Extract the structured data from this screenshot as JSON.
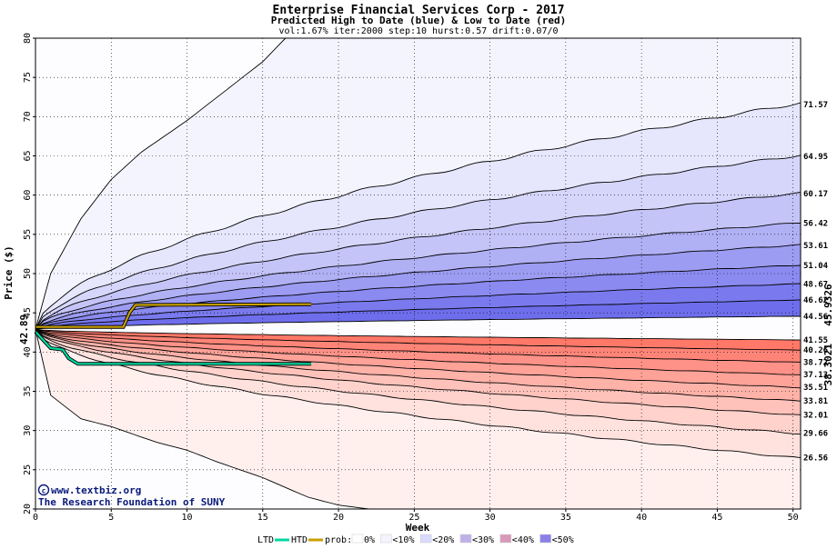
{
  "chart_data": {
    "type": "area",
    "title": "Enterprise Financial Services Corp - 2017",
    "subtitle": "Predicted High to Date (blue) &  Low to Date (red)",
    "params": "vol:1.67% iter:2000 step:10 hurst:0.57 drift:0.07/0",
    "xlabel": "Week",
    "ylabel": "Price ($)",
    "xlim": [
      0,
      50.5
    ],
    "ylim": [
      20,
      80
    ],
    "x_ticks": [
      0,
      5,
      10,
      15,
      20,
      25,
      30,
      35,
      40,
      45,
      50
    ],
    "y_ticks": [
      20,
      25,
      30,
      35,
      40,
      45,
      50,
      55,
      60,
      65,
      70,
      75,
      80
    ],
    "grid": true,
    "start_price": 42.89,
    "start_label": "42.89",
    "high_percentile_endpoints": [
      {
        "label": "71.57",
        "value": 71.57
      },
      {
        "label": "64.95",
        "value": 64.95
      },
      {
        "label": "60.17",
        "value": 60.17
      },
      {
        "label": "56.42",
        "value": 56.42
      },
      {
        "label": "53.61",
        "value": 53.61
      },
      {
        "label": "51.04",
        "value": 51.04
      },
      {
        "label": "48.67",
        "value": 48.67
      },
      {
        "label": "46.62",
        "value": 46.62
      },
      {
        "label": "44.56",
        "value": 44.56
      }
    ],
    "low_percentile_endpoints": [
      {
        "label": "41.55",
        "value": 41.55
      },
      {
        "label": "40.26",
        "value": 40.26
      },
      {
        "label": "38.72",
        "value": 38.72
      },
      {
        "label": "37.13",
        "value": 37.13
      },
      {
        "label": "35.51",
        "value": 35.51
      },
      {
        "label": "33.81",
        "value": 33.81
      },
      {
        "label": "32.01",
        "value": 32.01
      },
      {
        "label": "29.66",
        "value": 29.66
      },
      {
        "label": "26.56",
        "value": 26.56
      }
    ],
    "outer_envelope": {
      "upper": [
        [
          0,
          42.89
        ],
        [
          1,
          50.0
        ],
        [
          2,
          53.5
        ],
        [
          3,
          57.0
        ],
        [
          4,
          59.5
        ],
        [
          5,
          62.0
        ],
        [
          7,
          65.5
        ],
        [
          10,
          69.5
        ],
        [
          13,
          74.0
        ],
        [
          15,
          77.0
        ],
        [
          16.5,
          80.0
        ]
      ],
      "lower": [
        [
          0,
          42.89
        ],
        [
          1,
          34.5
        ],
        [
          2,
          33.0
        ],
        [
          3,
          31.5
        ],
        [
          5,
          30.5
        ],
        [
          8,
          28.5
        ],
        [
          10,
          27.5
        ],
        [
          12,
          26.0
        ],
        [
          15,
          24.0
        ],
        [
          18,
          21.5
        ],
        [
          20,
          20.5
        ],
        [
          22,
          20.0
        ]
      ]
    },
    "htd_series": {
      "name": "HTD",
      "color": "#c8a000",
      "points": [
        [
          0,
          43.2
        ],
        [
          5.8,
          43.2
        ],
        [
          6.2,
          45.0
        ],
        [
          6.6,
          46.0
        ],
        [
          18.2,
          46.1
        ]
      ],
      "end_value_label": "45.9326"
    },
    "ltd_series": {
      "name": "LTD",
      "color": "#00d8a0",
      "points": [
        [
          0,
          42.6
        ],
        [
          1.0,
          40.5
        ],
        [
          1.8,
          40.3
        ],
        [
          2.2,
          39.2
        ],
        [
          2.8,
          38.5
        ],
        [
          18.2,
          38.5
        ]
      ],
      "end_value_label": "38.3021"
    },
    "credit": {
      "site": "www.textbiz.org",
      "org": "The Research Foundation of SUNY"
    },
    "legend": {
      "ltd": "LTD",
      "htd": "HTD",
      "prob": "prob:",
      "items": [
        {
          "label": "0%",
          "color": "#ffffff"
        },
        {
          "label": "<10%",
          "color": "#f4f4fe"
        },
        {
          "label": "<20%",
          "color": "#dadafc"
        },
        {
          "label": "<30%",
          "color": "#c0b0e8"
        },
        {
          "label": "<40%",
          "color": "#d89ab8"
        },
        {
          "label": "<50%",
          "color": "#8a80e8"
        }
      ],
      "placement": "bottom"
    },
    "colors": {
      "plot_bg": "#fdfdff",
      "blue_bands": [
        "#f4f4fe",
        "#e6e6fd",
        "#d6d6fb",
        "#c4c4f8",
        "#b0b0f5",
        "#9c9cf2",
        "#8a8af0",
        "#7a7aee",
        "#6e6eec"
      ],
      "red_bands": [
        "#fff0ee",
        "#ffe2de",
        "#ffd2cc",
        "#ffc2ba",
        "#ffb2a8",
        "#ffa298",
        "#ff9288",
        "#ff8478",
        "#ff7868"
      ],
      "grid": "#000000",
      "frame": "#000000"
    }
  }
}
